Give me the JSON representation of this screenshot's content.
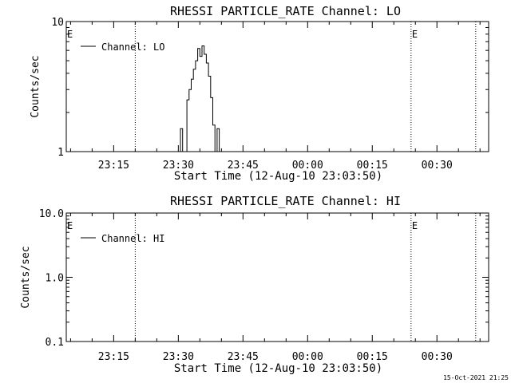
{
  "footer_timestamp": "15-Oct-2021 21:25",
  "chart_data": [
    {
      "type": "line",
      "title": "RHESSI PARTICLE_RATE Channel: LO",
      "xlabel": "Start Time (12-Aug-10 23:03:50)",
      "ylabel": "Counts/sec",
      "x_scale": "time",
      "y_scale": "log",
      "x_range": [
        "23:04",
        "00:42"
      ],
      "ylim": [
        1,
        10
      ],
      "x_tick_labels": [
        "23:15",
        "23:30",
        "23:45",
        "00:00",
        "00:15",
        "00:30"
      ],
      "y_tick_labels": [
        "1",
        "10"
      ],
      "legend": {
        "label": "Channel: LO",
        "placement": "top-left"
      },
      "markers": [
        {
          "label": "E",
          "time": "23:04"
        },
        {
          "time": "23:20"
        },
        {
          "label": "E",
          "time": "00:24"
        },
        {
          "time": "00:39"
        }
      ],
      "series": [
        {
          "name": "Channel: LO",
          "points": [
            [
              "23:30:00",
              1
            ],
            [
              "23:30:30",
              1.5
            ],
            [
              "23:31:00",
              1
            ],
            [
              "23:31:30",
              1
            ],
            [
              "23:32:00",
              2.5
            ],
            [
              "23:32:30",
              3
            ],
            [
              "23:33:00",
              3.6
            ],
            [
              "23:33:30",
              4.3
            ],
            [
              "23:34:00",
              5
            ],
            [
              "23:34:30",
              6.2
            ],
            [
              "23:35:00",
              5.4
            ],
            [
              "23:35:30",
              6.5
            ],
            [
              "23:36:00",
              5.6
            ],
            [
              "23:36:30",
              4.8
            ],
            [
              "23:37:00",
              3.8
            ],
            [
              "23:37:30",
              2.6
            ],
            [
              "23:38:00",
              1.6
            ],
            [
              "23:38:30",
              1
            ],
            [
              "23:39:00",
              1.5
            ],
            [
              "23:39:30",
              1
            ]
          ]
        }
      ]
    },
    {
      "type": "line",
      "title": "RHESSI PARTICLE_RATE Channel: HI",
      "xlabel": "Start Time (12-Aug-10 23:03:50)",
      "ylabel": "Counts/sec",
      "x_scale": "time",
      "y_scale": "log",
      "x_range": [
        "23:04",
        "00:42"
      ],
      "ylim": [
        0.1,
        10
      ],
      "x_tick_labels": [
        "23:15",
        "23:30",
        "23:45",
        "00:00",
        "00:15",
        "00:30"
      ],
      "y_tick_labels": [
        "0.1",
        "1.0",
        "10.0"
      ],
      "legend": {
        "label": "Channel: HI",
        "placement": "top-left"
      },
      "markers": [
        {
          "label": "E",
          "time": "23:04"
        },
        {
          "time": "23:20"
        },
        {
          "label": "E",
          "time": "00:24"
        },
        {
          "time": "00:39"
        }
      ],
      "series": [
        {
          "name": "Channel: HI",
          "points": []
        }
      ]
    }
  ]
}
